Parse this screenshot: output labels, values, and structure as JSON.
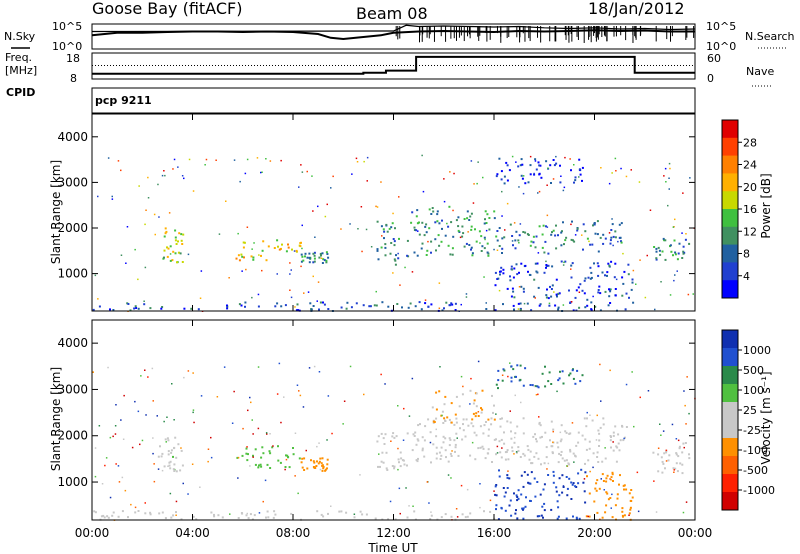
{
  "header": {
    "station": "Goose Bay (fitACF)",
    "beam": "Beam 08",
    "date": "18/Jan/2012"
  },
  "noise_panel": {
    "left_label": "N.Sky",
    "right_label": "N.Search",
    "left_ticks": [
      "10^5",
      "10^0"
    ],
    "right_ticks": [
      "10^5",
      "10^0"
    ]
  },
  "freq_panel": {
    "left_label_1": "Freq.",
    "left_label_2": "[MHz]",
    "left_ticks": [
      "18",
      "8"
    ],
    "right_label": "Nave",
    "right_ticks": [
      "60",
      "0"
    ]
  },
  "cpid": {
    "label": "CPID",
    "value": "pcp 9211"
  },
  "x_axis": {
    "label": "Time UT",
    "ticks": [
      "00:00",
      "04:00",
      "08:00",
      "12:00",
      "16:00",
      "20:00",
      "00:00"
    ]
  },
  "power_colorbar": {
    "title": "Power [dB]",
    "labels": [
      "28",
      "24",
      "20",
      "16",
      "12",
      "8",
      "4"
    ],
    "colors": [
      "#e00000",
      "#ff4000",
      "#ff8000",
      "#ffb000",
      "#c8d800",
      "#40c040",
      "#409060",
      "#2060a0",
      "#2040d0",
      "#0000ff"
    ]
  },
  "velocity_colorbar": {
    "title": "Velocity [m s⁻¹]",
    "labels": [
      "1000",
      "500",
      "100",
      "25",
      "-25",
      "-100",
      "-500",
      "-1000"
    ],
    "colors": [
      "#1030b0",
      "#2050d0",
      "#2a8a4a",
      "#50c040",
      "#c8c8c8",
      "#c8c8c8",
      "#ff9000",
      "#ff6000",
      "#ff2000",
      "#d00000"
    ]
  },
  "chart_data": [
    {
      "type": "line",
      "title": "",
      "xlabel": "",
      "ylabel": "N.Sky",
      "x_range_hours": [
        0,
        24
      ],
      "series": [
        {
          "name": "N.Sky",
          "x": [
            0,
            0.5,
            1,
            2,
            3,
            4,
            5,
            6,
            7,
            8,
            9,
            9.5,
            10,
            10.5,
            11,
            11.5,
            12,
            13,
            14,
            15,
            16,
            17,
            18,
            19,
            20,
            21,
            22,
            23,
            24
          ],
          "level": [
            0.55,
            0.6,
            0.65,
            0.65,
            0.68,
            0.7,
            0.7,
            0.68,
            0.7,
            0.68,
            0.6,
            0.45,
            0.4,
            0.45,
            0.5,
            0.55,
            0.65,
            0.7,
            0.72,
            0.7,
            0.68,
            0.72,
            0.7,
            0.72,
            0.75,
            0.72,
            0.74,
            0.7,
            0.7
          ]
        },
        {
          "name": "N.Search",
          "x": [
            0,
            12,
            12.5,
            13,
            14,
            15,
            16,
            17,
            18,
            19,
            20,
            21,
            22,
            23,
            24
          ],
          "level": [
            0.7,
            0.72,
            0.95,
            0.9,
            0.92,
            0.9,
            0.88,
            0.9,
            0.85,
            0.82,
            0.85,
            0.8,
            0.82,
            0.78,
            0.8
          ]
        }
      ]
    },
    {
      "type": "line",
      "title": "",
      "xlabel": "",
      "ylabel": "Freq. [MHz]",
      "ylim": [
        8,
        18
      ],
      "series": [
        {
          "name": "Freq.",
          "x": [
            0,
            10.8,
            10.8,
            11.7,
            11.7,
            12.9,
            12.9,
            19.6,
            19.6,
            21.6,
            21.6,
            24
          ],
          "y": [
            10,
            10,
            10.4,
            10.4,
            11.2,
            11.2,
            16.5,
            16.5,
            16.5,
            16.5,
            10.4,
            10.4
          ]
        },
        {
          "name": "Nave",
          "x": [
            0,
            24
          ],
          "y": [
            13.2,
            13.2
          ]
        }
      ]
    },
    {
      "type": "heatmap",
      "title": "",
      "xlabel": "Time UT",
      "ylabel": "Slant Range [km]",
      "ylim": [
        180,
        4500
      ],
      "yticks": [
        1000,
        2000,
        3000,
        4000
      ],
      "xticks_hours": [
        0,
        4,
        8,
        12,
        16,
        20,
        24
      ],
      "quantity": "Power [dB]",
      "value_range": [
        0,
        30
      ],
      "patches": [
        {
          "t": [
            2.6,
            3.6
          ],
          "r": [
            1250,
            2050
          ],
          "v": 16
        },
        {
          "t": [
            5.7,
            8.3
          ],
          "r": [
            1300,
            1800
          ],
          "v": 18
        },
        {
          "t": [
            8.3,
            9.4
          ],
          "r": [
            1250,
            1500
          ],
          "v": 10
        },
        {
          "t": [
            11.3,
            12.2
          ],
          "r": [
            1200,
            2200
          ],
          "v": 10
        },
        {
          "t": [
            12.5,
            16.0
          ],
          "r": [
            1400,
            2500
          ],
          "v": 10
        },
        {
          "t": [
            16.0,
            18.5
          ],
          "r": [
            1450,
            2100
          ],
          "v": 9
        },
        {
          "t": [
            18.5,
            21.2
          ],
          "r": [
            1500,
            2200
          ],
          "v": 8
        },
        {
          "t": [
            22.3,
            23.8
          ],
          "r": [
            1300,
            1800
          ],
          "v": 10
        },
        {
          "t": [
            16.0,
            21.5
          ],
          "r": [
            200,
            1300
          ],
          "v": 5
        },
        {
          "t": [
            16.0,
            19.6
          ],
          "r": [
            3000,
            3550
          ],
          "v": 4
        },
        {
          "t": [
            0.0,
            16.0
          ],
          "r": [
            200,
            400
          ],
          "v": 6
        }
      ]
    },
    {
      "type": "heatmap",
      "title": "",
      "xlabel": "Time UT",
      "ylabel": "Slant Range [km]",
      "ylim": [
        180,
        4500
      ],
      "yticks": [
        1000,
        2000,
        3000,
        4000
      ],
      "xticks_hours": [
        0,
        4,
        8,
        12,
        16,
        20,
        24
      ],
      "quantity": "Velocity [m s⁻¹]",
      "value_range": [
        -1000,
        1000
      ],
      "patches": [
        {
          "t": [
            2.6,
            3.6
          ],
          "r": [
            1250,
            2000
          ],
          "v": 150
        },
        {
          "t": [
            5.7,
            8.3
          ],
          "r": [
            1300,
            1800
          ],
          "v": 300
        },
        {
          "t": [
            8.3,
            9.4
          ],
          "r": [
            1250,
            1550
          ],
          "v": -300
        },
        {
          "t": [
            11.3,
            12.5
          ],
          "r": [
            1200,
            2100
          ],
          "v": -10
        },
        {
          "t": [
            12.5,
            21.3
          ],
          "r": [
            1400,
            2400
          ],
          "v": 0
        },
        {
          "t": [
            13.5,
            16.0
          ],
          "r": [
            2300,
            3000
          ],
          "v": -200
        },
        {
          "t": [
            22.3,
            23.8
          ],
          "r": [
            1200,
            1900
          ],
          "v": 80
        },
        {
          "t": [
            16.0,
            19.6
          ],
          "r": [
            200,
            1300
          ],
          "v": 800
        },
        {
          "t": [
            16.0,
            19.6
          ],
          "r": [
            3050,
            3550
          ],
          "v": 600
        },
        {
          "t": [
            19.6,
            21.5
          ],
          "r": [
            200,
            1300
          ],
          "v": -300
        },
        {
          "t": [
            0.0,
            16.0
          ],
          "r": [
            200,
            400
          ],
          "v": 60
        }
      ]
    }
  ]
}
